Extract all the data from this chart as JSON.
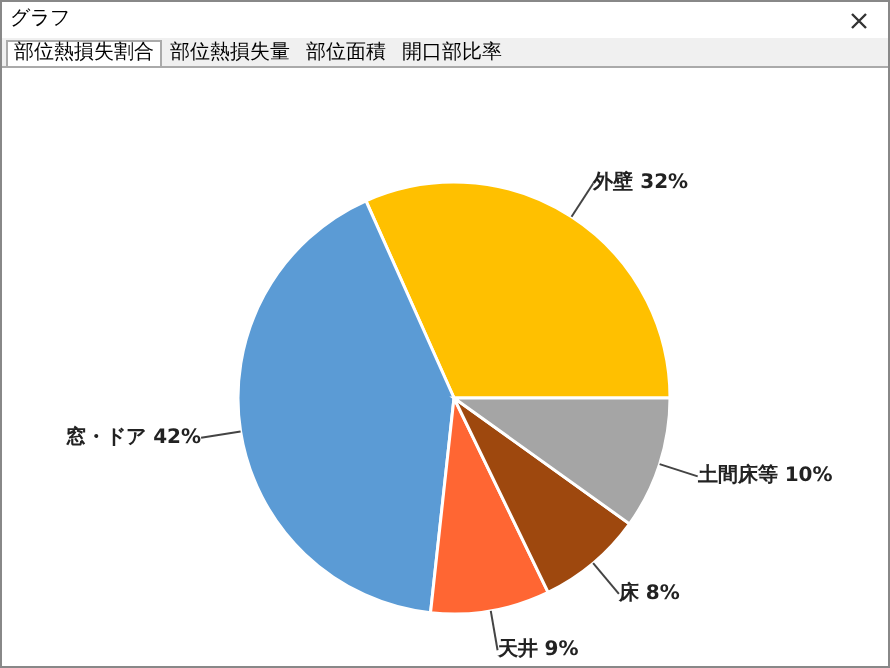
{
  "chart_data": {
    "type": "pie",
    "title": "グラフ",
    "annotations": [
      "部位熱損失割合",
      "部位熱損失量",
      "部位面積",
      "開口部比率"
    ],
    "categories": [
      "外壁",
      "窓・ドア",
      "天井",
      "床",
      "土間床等"
    ],
    "values": [
      32,
      42,
      9,
      8,
      10
    ],
    "value_labels": [
      "32%",
      "42%",
      "9%",
      "8%",
      "10%"
    ],
    "colors": [
      "#ffc000",
      "#5b9bd5",
      "#ff6633",
      "#9e480e",
      "#a5a5a5"
    ],
    "legend": false
  }
}
